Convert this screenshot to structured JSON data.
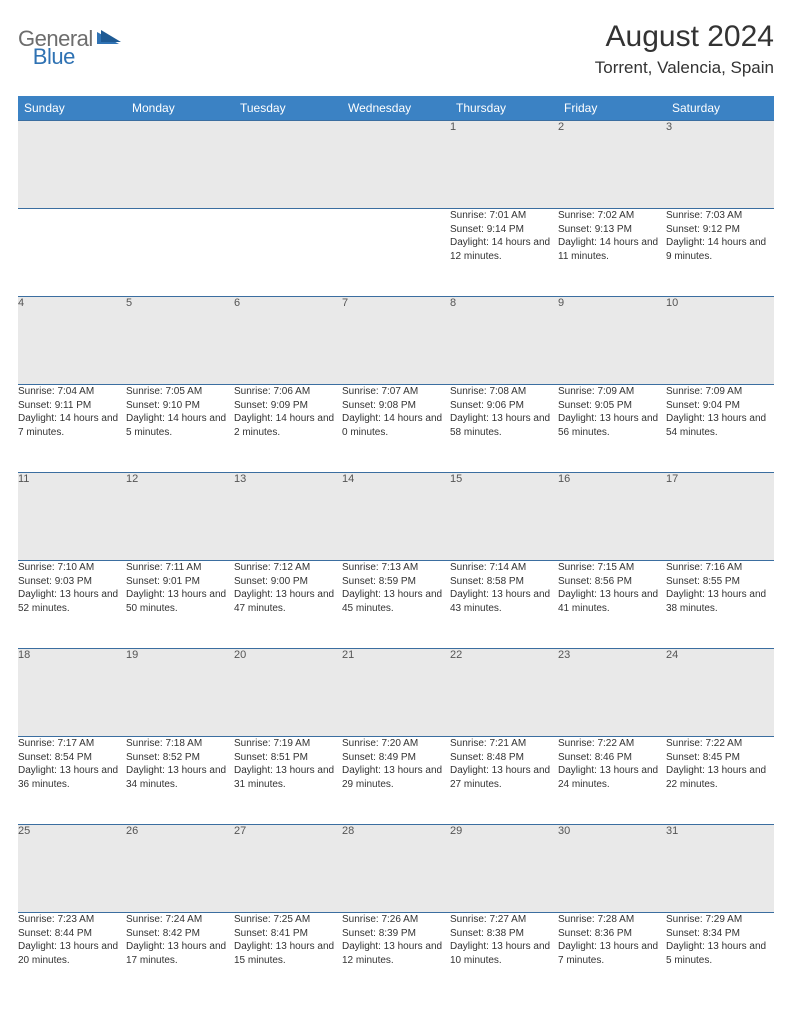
{
  "logo": {
    "gray": "General",
    "blue": "Blue"
  },
  "title": "August 2024",
  "location": "Torrent, Valencia, Spain",
  "colors": {
    "header_bg": "#3b82c4",
    "header_text": "#ffffff",
    "daynum_bg": "#e9e9e9",
    "border": "#3b6ea0",
    "logo_gray": "#6d6d6d",
    "logo_blue": "#2f72b3",
    "body_bg": "#ffffff"
  },
  "weekdays": [
    "Sunday",
    "Monday",
    "Tuesday",
    "Wednesday",
    "Thursday",
    "Friday",
    "Saturday"
  ],
  "weeks": [
    [
      {
        "n": "",
        "c": ""
      },
      {
        "n": "",
        "c": ""
      },
      {
        "n": "",
        "c": ""
      },
      {
        "n": "",
        "c": ""
      },
      {
        "n": "1",
        "c": "Sunrise: 7:01 AM\nSunset: 9:14 PM\nDaylight: 14 hours and 12 minutes."
      },
      {
        "n": "2",
        "c": "Sunrise: 7:02 AM\nSunset: 9:13 PM\nDaylight: 14 hours and 11 minutes."
      },
      {
        "n": "3",
        "c": "Sunrise: 7:03 AM\nSunset: 9:12 PM\nDaylight: 14 hours and 9 minutes."
      }
    ],
    [
      {
        "n": "4",
        "c": "Sunrise: 7:04 AM\nSunset: 9:11 PM\nDaylight: 14 hours and 7 minutes."
      },
      {
        "n": "5",
        "c": "Sunrise: 7:05 AM\nSunset: 9:10 PM\nDaylight: 14 hours and 5 minutes."
      },
      {
        "n": "6",
        "c": "Sunrise: 7:06 AM\nSunset: 9:09 PM\nDaylight: 14 hours and 2 minutes."
      },
      {
        "n": "7",
        "c": "Sunrise: 7:07 AM\nSunset: 9:08 PM\nDaylight: 14 hours and 0 minutes."
      },
      {
        "n": "8",
        "c": "Sunrise: 7:08 AM\nSunset: 9:06 PM\nDaylight: 13 hours and 58 minutes."
      },
      {
        "n": "9",
        "c": "Sunrise: 7:09 AM\nSunset: 9:05 PM\nDaylight: 13 hours and 56 minutes."
      },
      {
        "n": "10",
        "c": "Sunrise: 7:09 AM\nSunset: 9:04 PM\nDaylight: 13 hours and 54 minutes."
      }
    ],
    [
      {
        "n": "11",
        "c": "Sunrise: 7:10 AM\nSunset: 9:03 PM\nDaylight: 13 hours and 52 minutes."
      },
      {
        "n": "12",
        "c": "Sunrise: 7:11 AM\nSunset: 9:01 PM\nDaylight: 13 hours and 50 minutes."
      },
      {
        "n": "13",
        "c": "Sunrise: 7:12 AM\nSunset: 9:00 PM\nDaylight: 13 hours and 47 minutes."
      },
      {
        "n": "14",
        "c": "Sunrise: 7:13 AM\nSunset: 8:59 PM\nDaylight: 13 hours and 45 minutes."
      },
      {
        "n": "15",
        "c": "Sunrise: 7:14 AM\nSunset: 8:58 PM\nDaylight: 13 hours and 43 minutes."
      },
      {
        "n": "16",
        "c": "Sunrise: 7:15 AM\nSunset: 8:56 PM\nDaylight: 13 hours and 41 minutes."
      },
      {
        "n": "17",
        "c": "Sunrise: 7:16 AM\nSunset: 8:55 PM\nDaylight: 13 hours and 38 minutes."
      }
    ],
    [
      {
        "n": "18",
        "c": "Sunrise: 7:17 AM\nSunset: 8:54 PM\nDaylight: 13 hours and 36 minutes."
      },
      {
        "n": "19",
        "c": "Sunrise: 7:18 AM\nSunset: 8:52 PM\nDaylight: 13 hours and 34 minutes."
      },
      {
        "n": "20",
        "c": "Sunrise: 7:19 AM\nSunset: 8:51 PM\nDaylight: 13 hours and 31 minutes."
      },
      {
        "n": "21",
        "c": "Sunrise: 7:20 AM\nSunset: 8:49 PM\nDaylight: 13 hours and 29 minutes."
      },
      {
        "n": "22",
        "c": "Sunrise: 7:21 AM\nSunset: 8:48 PM\nDaylight: 13 hours and 27 minutes."
      },
      {
        "n": "23",
        "c": "Sunrise: 7:22 AM\nSunset: 8:46 PM\nDaylight: 13 hours and 24 minutes."
      },
      {
        "n": "24",
        "c": "Sunrise: 7:22 AM\nSunset: 8:45 PM\nDaylight: 13 hours and 22 minutes."
      }
    ],
    [
      {
        "n": "25",
        "c": "Sunrise: 7:23 AM\nSunset: 8:44 PM\nDaylight: 13 hours and 20 minutes."
      },
      {
        "n": "26",
        "c": "Sunrise: 7:24 AM\nSunset: 8:42 PM\nDaylight: 13 hours and 17 minutes."
      },
      {
        "n": "27",
        "c": "Sunrise: 7:25 AM\nSunset: 8:41 PM\nDaylight: 13 hours and 15 minutes."
      },
      {
        "n": "28",
        "c": "Sunrise: 7:26 AM\nSunset: 8:39 PM\nDaylight: 13 hours and 12 minutes."
      },
      {
        "n": "29",
        "c": "Sunrise: 7:27 AM\nSunset: 8:38 PM\nDaylight: 13 hours and 10 minutes."
      },
      {
        "n": "30",
        "c": "Sunrise: 7:28 AM\nSunset: 8:36 PM\nDaylight: 13 hours and 7 minutes."
      },
      {
        "n": "31",
        "c": "Sunrise: 7:29 AM\nSunset: 8:34 PM\nDaylight: 13 hours and 5 minutes."
      }
    ]
  ]
}
